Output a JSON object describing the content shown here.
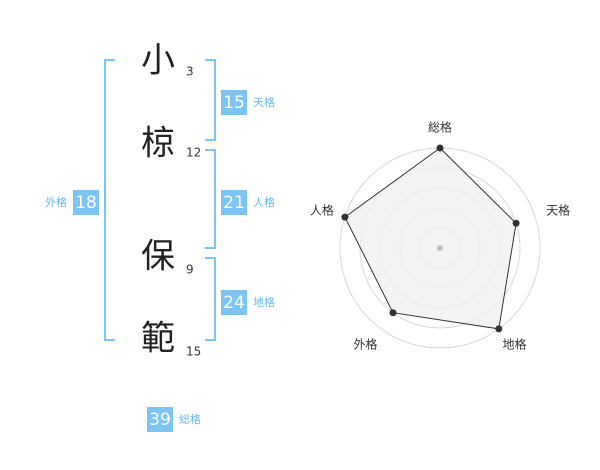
{
  "name": [
    {
      "char": "小",
      "strokes": 3
    },
    {
      "char": "椋",
      "strokes": 12
    },
    {
      "char": "保",
      "strokes": 9
    },
    {
      "char": "範",
      "strokes": 15
    }
  ],
  "scores": {
    "tenkaku": {
      "label": "天格",
      "value": 15
    },
    "jinkaku": {
      "label": "人格",
      "value": 21
    },
    "chikaku": {
      "label": "地格",
      "value": 24
    },
    "gaikaku": {
      "label": "外格",
      "value": 18
    },
    "soukaku": {
      "label": "総格",
      "value": 39
    }
  },
  "chart_data": {
    "type": "radar",
    "categories": [
      "総格",
      "天格",
      "地格",
      "外格",
      "人格"
    ],
    "values": [
      5,
      4,
      5,
      4,
      5
    ],
    "rlim": [
      0,
      5
    ],
    "rticks": [
      1,
      2,
      3,
      4,
      5
    ],
    "color": "#333333",
    "fill": "#f0f0f0",
    "grid": true
  }
}
